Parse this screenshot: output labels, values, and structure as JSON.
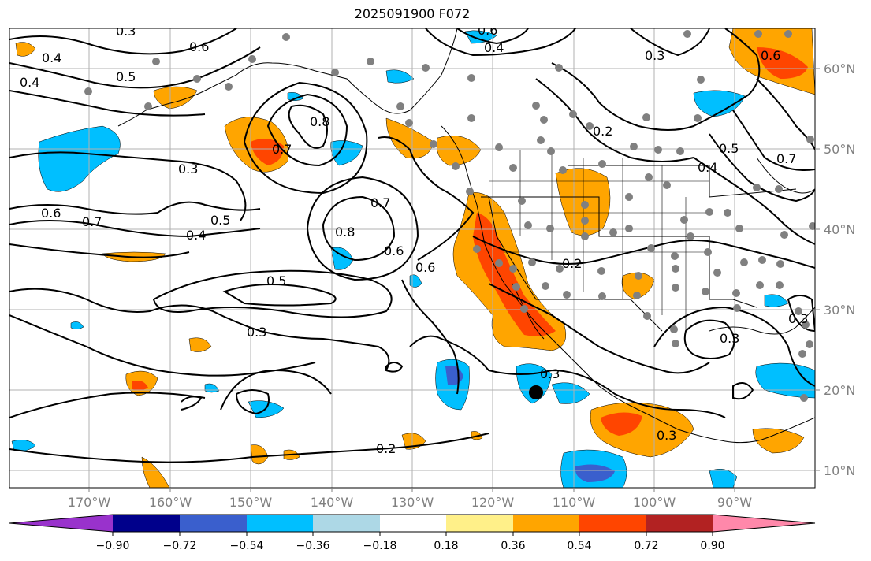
{
  "title": "2025091900 F072",
  "map": {
    "lat_labels": [
      "60°N",
      "50°N",
      "40°N",
      "30°N",
      "20°N",
      "10°N"
    ],
    "lon_labels": [
      "170°W",
      "160°W",
      "150°W",
      "140°W",
      "130°W",
      "120°W",
      "110°W",
      "100°W",
      "90°W"
    ],
    "contour_labels": [
      "0.4",
      "0.5",
      "0.6",
      "0.8",
      "0.3",
      "0.7",
      "0.6",
      "0.7",
      "0.4",
      "0.5",
      "0.8",
      "0.7",
      "0.6",
      "0.5",
      "0.6",
      "0.3",
      "0.2",
      "0.2",
      "0.3",
      "0.3",
      "0.3",
      "0.2",
      "0.6",
      "0.4",
      "0.3",
      "0.5",
      "0.4",
      "0.7",
      "0.6",
      "0.4",
      "0.3",
      "0.3"
    ],
    "station_color": "#808080",
    "marker_color": "#000000"
  },
  "colorbar": {
    "colors": [
      "#9932cc",
      "#00008b",
      "#3a5fcd",
      "#00bfff",
      "#add8e6",
      "#ffffff",
      "#fff089",
      "#ffa500",
      "#ff4500",
      "#b22222",
      "#ff88aa"
    ],
    "tick_labels": [
      "−0.90",
      "−0.72",
      "−0.54",
      "−0.36",
      "−0.18",
      "0.18",
      "0.36",
      "0.54",
      "0.72",
      "0.90"
    ]
  }
}
